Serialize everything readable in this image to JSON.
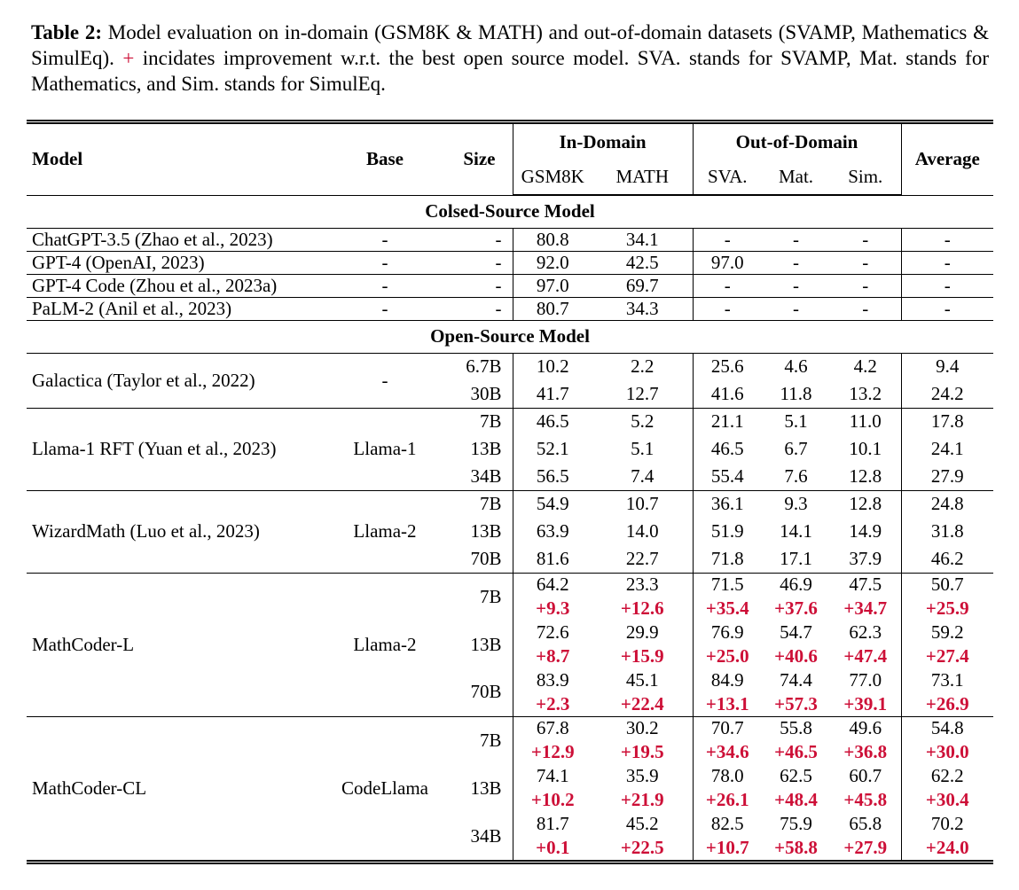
{
  "caption": {
    "label": "Table 2:",
    "text_before_plus": "Model evaluation on in-domain (GSM8K & MATH) and out-of-domain datasets (SVAMP, Mathematics & SimulEq).",
    "plus_sign": "+",
    "text_after_plus": "incidates improvement w.r.t. the best open source model. SVA. stands for SVAMP, Mat. stands for Mathematics, and Sim. stands for SimulEq."
  },
  "colors": {
    "gain_red": "#CD0F37",
    "text": "#000000",
    "background": "#ffffff"
  },
  "table": {
    "headers": {
      "model": "Model",
      "base": "Base",
      "size": "Size",
      "in_domain": "In-Domain",
      "out_of_domain": "Out-of-Domain",
      "average": "Average",
      "sub_columns": [
        "GSM8K",
        "MATH",
        "SVA.",
        "Mat.",
        "Sim."
      ]
    },
    "sections": [
      {
        "title": "Colsed-Source Model",
        "row_class": "row-cs",
        "groups": [
          {
            "model": "ChatGPT-3.5 (Zhao et al., 2023)",
            "base": "-",
            "rows": [
              {
                "size": "-",
                "values": [
                  "80.8",
                  "34.1",
                  "-",
                  "-",
                  "-",
                  "-"
                ]
              }
            ]
          },
          {
            "model": "GPT-4 (OpenAI, 2023)",
            "base": "-",
            "rows": [
              {
                "size": "-",
                "values": [
                  "92.0",
                  "42.5",
                  "97.0",
                  "-",
                  "-",
                  "-"
                ]
              }
            ]
          },
          {
            "model": "GPT-4 Code (Zhou et al., 2023a)",
            "base": "-",
            "rows": [
              {
                "size": "-",
                "values": [
                  "97.0",
                  "69.7",
                  "-",
                  "-",
                  "-",
                  "-"
                ]
              }
            ]
          },
          {
            "model": "PaLM-2 (Anil et al., 2023)",
            "base": "-",
            "rows": [
              {
                "size": "-",
                "values": [
                  "80.7",
                  "34.3",
                  "-",
                  "-",
                  "-",
                  "-"
                ]
              }
            ]
          }
        ]
      },
      {
        "title": "Open-Source Model",
        "row_class": "row-os",
        "groups": [
          {
            "model": "Galactica (Taylor et al., 2022)",
            "base": "-",
            "rows": [
              {
                "size": "6.7B",
                "values": [
                  "10.2",
                  "2.2",
                  "25.6",
                  "4.6",
                  "4.2",
                  "9.4"
                ]
              },
              {
                "size": "30B",
                "values": [
                  "41.7",
                  "12.7",
                  "41.6",
                  "11.8",
                  "13.2",
                  "24.2"
                ]
              }
            ]
          },
          {
            "model": "Llama-1 RFT (Yuan et al., 2023)",
            "base": "Llama-1",
            "rows": [
              {
                "size": "7B",
                "values": [
                  "46.5",
                  "5.2",
                  "21.1",
                  "5.1",
                  "11.0",
                  "17.8"
                ]
              },
              {
                "size": "13B",
                "values": [
                  "52.1",
                  "5.1",
                  "46.5",
                  "6.7",
                  "10.1",
                  "24.1"
                ]
              },
              {
                "size": "34B",
                "values": [
                  "56.5",
                  "7.4",
                  "55.4",
                  "7.6",
                  "12.8",
                  "27.9"
                ]
              }
            ]
          },
          {
            "model": "WizardMath (Luo et al., 2023)",
            "base": "Llama-2",
            "rows": [
              {
                "size": "7B",
                "values": [
                  "54.9",
                  "10.7",
                  "36.1",
                  "9.3",
                  "12.8",
                  "24.8"
                ]
              },
              {
                "size": "13B",
                "values": [
                  "63.9",
                  "14.0",
                  "51.9",
                  "14.1",
                  "14.9",
                  "31.8"
                ]
              },
              {
                "size": "70B",
                "values": [
                  "81.6",
                  "22.7",
                  "71.8",
                  "17.1",
                  "37.9",
                  "46.2"
                ]
              }
            ]
          },
          {
            "model": "MathCoder-L",
            "base": "Llama-2",
            "rows": [
              {
                "size": "7B",
                "values": [
                  "64.2",
                  "23.3",
                  "71.5",
                  "46.9",
                  "47.5",
                  "50.7"
                ],
                "gains": [
                  "+9.3",
                  "+12.6",
                  "+35.4",
                  "+37.6",
                  "+34.7",
                  "+25.9"
                ]
              },
              {
                "size": "13B",
                "values": [
                  "72.6",
                  "29.9",
                  "76.9",
                  "54.7",
                  "62.3",
                  "59.2"
                ],
                "gains": [
                  "+8.7",
                  "+15.9",
                  "+25.0",
                  "+40.6",
                  "+47.4",
                  "+27.4"
                ]
              },
              {
                "size": "70B",
                "values": [
                  "83.9",
                  "45.1",
                  "84.9",
                  "74.4",
                  "77.0",
                  "73.1"
                ],
                "gains": [
                  "+2.3",
                  "+22.4",
                  "+13.1",
                  "+57.3",
                  "+39.1",
                  "+26.9"
                ]
              }
            ]
          },
          {
            "model": "MathCoder-CL",
            "base": "CodeLlama",
            "rows": [
              {
                "size": "7B",
                "values": [
                  "67.8",
                  "30.2",
                  "70.7",
                  "55.8",
                  "49.6",
                  "54.8"
                ],
                "gains": [
                  "+12.9",
                  "+19.5",
                  "+34.6",
                  "+46.5",
                  "+36.8",
                  "+30.0"
                ]
              },
              {
                "size": "13B",
                "values": [
                  "74.1",
                  "35.9",
                  "78.0",
                  "62.5",
                  "60.7",
                  "62.2"
                ],
                "gains": [
                  "+10.2",
                  "+21.9",
                  "+26.1",
                  "+48.4",
                  "+45.8",
                  "+30.4"
                ]
              },
              {
                "size": "34B",
                "values": [
                  "81.7",
                  "45.2",
                  "82.5",
                  "75.9",
                  "65.8",
                  "70.2"
                ],
                "gains": [
                  "+0.1",
                  "+22.5",
                  "+10.7",
                  "+58.8",
                  "+27.9",
                  "+24.0"
                ]
              }
            ]
          }
        ]
      }
    ]
  }
}
